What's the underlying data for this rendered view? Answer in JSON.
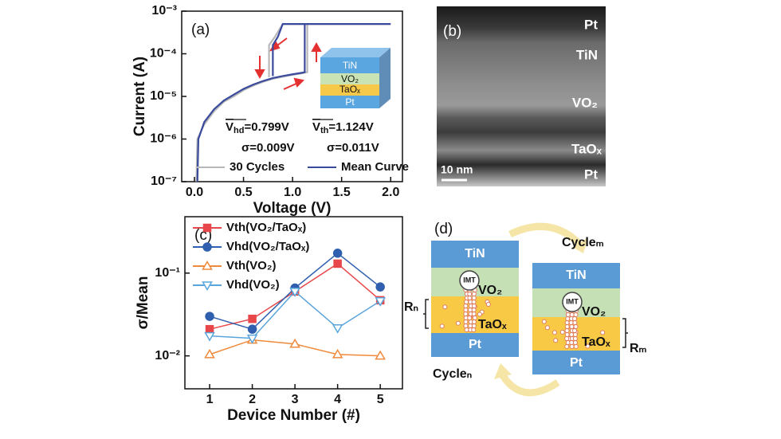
{
  "chart_data": [
    {
      "type": "line",
      "label": "(a)",
      "xlabel": "Voltage (V)",
      "ylabel": "Current (A)",
      "xlim": [
        -0.13,
        2.12
      ],
      "ylim": [
        1e-07,
        0.001
      ],
      "ylog": true,
      "xticks": [
        {
          "value": 0,
          "label": "0.0"
        },
        0.5,
        {
          "value": 1,
          "label": "1.0"
        },
        1.5,
        {
          "value": 2,
          "label": "2.0"
        }
      ],
      "yticks": [
        {
          "value": 1e-07,
          "label": "10⁻⁷"
        },
        {
          "value": 1e-06,
          "label": "10⁻⁶"
        },
        {
          "value": 1e-05,
          "label": "10⁻⁵"
        },
        {
          "value": 0.0001,
          "label": "10⁻⁴"
        },
        {
          "value": 0.001,
          "label": "10⁻³"
        }
      ],
      "series": [
        {
          "name": "30 Cycles",
          "color": "#b8b8b8",
          "x": [
            0.02,
            0.03,
            0.1,
            0.2,
            0.3,
            0.4,
            0.5,
            0.6,
            0.7,
            0.8,
            0.9,
            1.0,
            1.1,
            1.15,
            1.15,
            2.0,
            1.0,
            0.9,
            0.82,
            0.76,
            0.76
          ],
          "values": [
            1e-07,
            1e-06,
            2.2e-06,
            4.5e-06,
            7.5e-06,
            1e-05,
            1.4e-05,
            1.8e-05,
            2.2e-05,
            2.6e-05,
            2.9e-05,
            3.2e-05,
            3.5e-05,
            3.7e-05,
            0.0005,
            0.0005,
            0.0005,
            0.0005,
            0.00025,
            0.00016,
            2.8e-05
          ]
        },
        {
          "name": "Mean Curve",
          "color": "#3a4a9c",
          "x": [
            0.03,
            0.04,
            0.1,
            0.2,
            0.3,
            0.4,
            0.5,
            0.6,
            0.7,
            0.8,
            0.9,
            1.0,
            1.1,
            1.124,
            1.124,
            2.0,
            1.0,
            0.9,
            0.85,
            0.799,
            0.799
          ],
          "values": [
            1e-07,
            1e-06,
            2.5e-06,
            5e-06,
            8e-06,
            1.1e-05,
            1.5e-05,
            1.9e-05,
            2.3e-05,
            2.7e-05,
            3e-05,
            3.3e-05,
            3.6e-05,
            3.7e-05,
            0.0005,
            0.0005,
            0.0005,
            0.0005,
            0.00025,
            0.00016,
            3e-05
          ]
        }
      ],
      "legend": "lower right",
      "annotations": [
        {
          "symbol": "V",
          "subscript": "hd",
          "text": "=0.799V"
        },
        {
          "symbol": "V",
          "subscript": "th",
          "text": "=1.124V"
        },
        {
          "text": "σ=0.009V"
        },
        {
          "text": "σ=0.011V"
        }
      ],
      "inset_layers": [
        "TiN",
        "VO₂",
        "TaOₓ",
        "Pt"
      ]
    },
    {
      "type": "line",
      "label": "(c)",
      "xlabel": "Device Number (#)",
      "ylabel": "σ/Mean",
      "xlim": [
        0.42,
        5.52
      ],
      "ylim": [
        0.004,
        0.48
      ],
      "ylog": true,
      "xticks": [
        1,
        2,
        3,
        4,
        5
      ],
      "yticks": [
        {
          "value": 0.01,
          "label": "10⁻²"
        },
        {
          "value": 0.1,
          "label": "10⁻¹"
        }
      ],
      "x": [
        1,
        2,
        3,
        4,
        5
      ],
      "series": [
        {
          "name": "Vth(VO₂/TaOₓ)",
          "color": "#e8474a",
          "marker": "square",
          "filled": true,
          "values": [
            0.021,
            0.028,
            0.06,
            0.13,
            0.047
          ]
        },
        {
          "name": "Vhd(VO₂/TaOₓ)",
          "color": "#2f5fae",
          "marker": "circle",
          "filled": true,
          "values": [
            0.03,
            0.021,
            0.066,
            0.174,
            0.068
          ]
        },
        {
          "name": "Vth(VO₂)",
          "color": "#ef8a3c",
          "marker": "triangle-up",
          "filled": false,
          "values": [
            0.0104,
            0.0156,
            0.0139,
            0.0104,
            0.01
          ]
        },
        {
          "name": "Vhd(VO₂)",
          "color": "#5aa5dc",
          "marker": "triangle-down",
          "filled": false,
          "values": [
            0.0174,
            0.0163,
            0.06,
            0.0217,
            0.046
          ]
        }
      ],
      "legend": "upper left"
    }
  ],
  "micrograph": {
    "label": "(b)",
    "layers": [
      "Pt",
      "TiN",
      "VO₂",
      "TaOₓ",
      "Pt"
    ],
    "scale_bar": "10 nm"
  },
  "diagram": {
    "label": "(d)",
    "left_stack": {
      "layers": [
        "TiN",
        "VO₂",
        "TaOₓ",
        "Pt"
      ],
      "switch": "IMT",
      "resistance": "Rₙ"
    },
    "right_stack": {
      "layers": [
        "TiN",
        "VO₂",
        "TaOₓ",
        "Pt"
      ],
      "switch": "IMT",
      "resistance": "Rₘ"
    },
    "cycles": [
      "Cycleₘ",
      "Cycleₙ"
    ]
  }
}
